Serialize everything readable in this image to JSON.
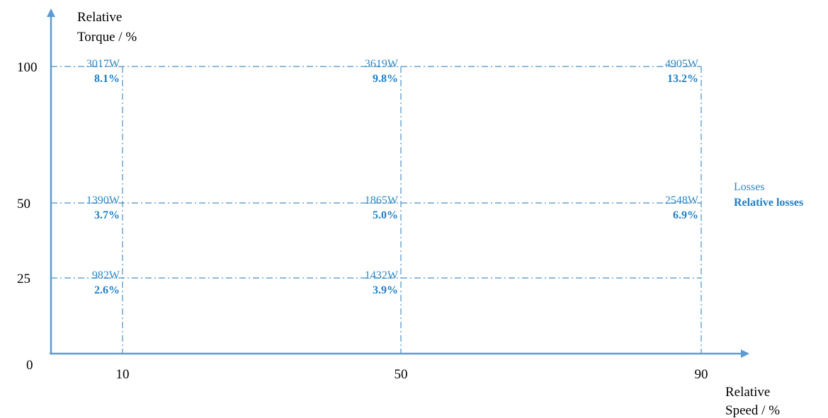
{
  "chart_data": {
    "type": "scatter",
    "xlabel_lines": [
      "Relative",
      "Speed / %"
    ],
    "ylabel_lines": [
      "Relative",
      "Torque / %"
    ],
    "x_ticks": [
      10,
      50,
      90
    ],
    "y_ticks": [
      25,
      50,
      100
    ],
    "origin_label": "0",
    "xlim": [
      0,
      100
    ],
    "ylim": [
      0,
      110
    ],
    "points": [
      {
        "speed": 10,
        "torque": 100,
        "losses": "3017W",
        "relative_losses": "8.1%"
      },
      {
        "speed": 50,
        "torque": 100,
        "losses": "3619W",
        "relative_losses": "9.8%"
      },
      {
        "speed": 90,
        "torque": 100,
        "losses": "4905W",
        "relative_losses": "13.2%"
      },
      {
        "speed": 10,
        "torque": 50,
        "losses": "1390W",
        "relative_losses": "3.7%"
      },
      {
        "speed": 50,
        "torque": 50,
        "losses": "1865W",
        "relative_losses": "5.0%"
      },
      {
        "speed": 90,
        "torque": 50,
        "losses": "2548W",
        "relative_losses": "6.9%"
      },
      {
        "speed": 10,
        "torque": 25,
        "losses": "982W",
        "relative_losses": "2.6%"
      },
      {
        "speed": 50,
        "torque": 25,
        "losses": "1432W",
        "relative_losses": "3.9%"
      }
    ],
    "legend": {
      "losses_label": "Losses",
      "relative_label": "Relative losses",
      "placement": "right"
    },
    "grid": "dash-dot"
  },
  "colors": {
    "axis": "#5b9bd5",
    "grid": "#4a90c8",
    "losses": "#2e86c1",
    "relative": "#1f7fc4"
  }
}
